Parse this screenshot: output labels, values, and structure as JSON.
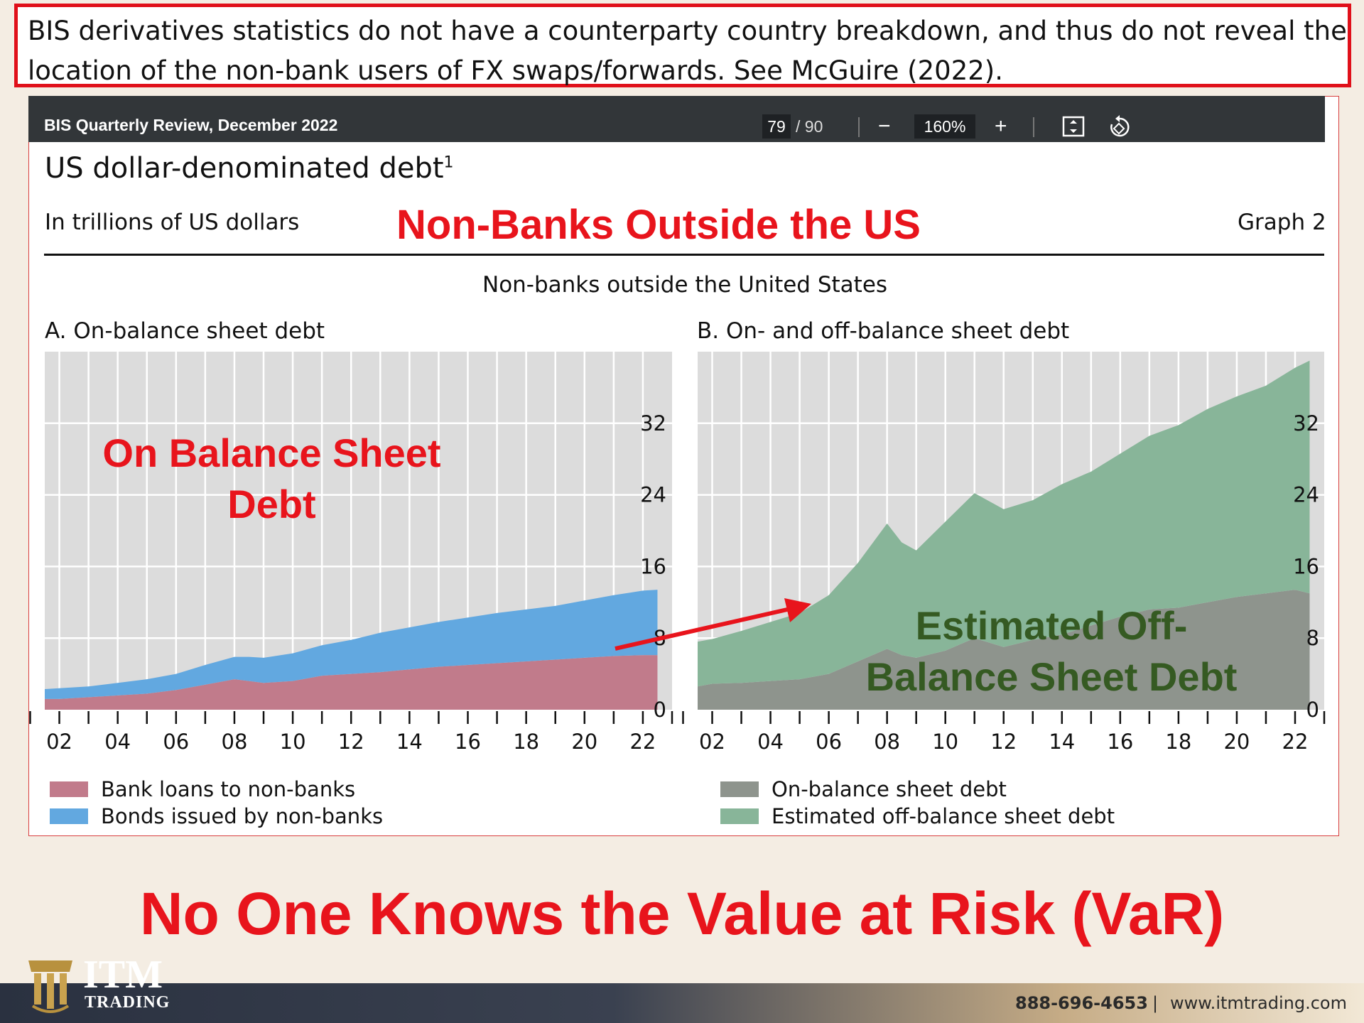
{
  "top_note": {
    "line1": "BIS derivatives statistics do not have a counterparty country breakdown, and thus do not reveal the",
    "line2": "location of the non-bank users of FX swaps/forwards. See McGuire (2022)."
  },
  "viewer": {
    "doc_title": "BIS Quarterly Review, December 2022",
    "page_current": "79",
    "page_total": "/ 90",
    "zoom": "160%"
  },
  "graph": {
    "title": "US dollar-denominated debt",
    "title_sup": "1",
    "units": "In trillions of US dollars",
    "graph_label": "Graph 2",
    "subtitle": "Non-banks outside the United States"
  },
  "annotations": {
    "headline": "Non-Banks Outside the US",
    "left_line1": "On Balance Sheet",
    "left_line2": "Debt",
    "right_line1": "Estimated Off-",
    "right_line2": "Balance Sheet Debt",
    "bottom_banner": "No One Knows the Value at Risk (VaR)"
  },
  "chart_data": [
    {
      "type": "area",
      "stacked": true,
      "title": "A. On-balance sheet debt",
      "xlabel": "",
      "ylabel": "",
      "x_ticks": [
        "02",
        "04",
        "06",
        "08",
        "10",
        "12",
        "14",
        "16",
        "18",
        "20",
        "22"
      ],
      "y_ticks": [
        "0",
        "8",
        "16",
        "24",
        "32"
      ],
      "xlim": [
        2001.5,
        2023
      ],
      "ylim": [
        0,
        40
      ],
      "grid": true,
      "legend_position": "bottom",
      "colors": [
        "#c17b8b",
        "#62a8e0"
      ],
      "x": [
        2001.5,
        2002,
        2003,
        2004,
        2005,
        2006,
        2007,
        2008,
        2008.5,
        2009,
        2010,
        2011,
        2012,
        2013,
        2014,
        2015,
        2016,
        2017,
        2018,
        2019,
        2020,
        2021,
        2022,
        2022.5
      ],
      "series": [
        {
          "name": "Bank loans to non-banks",
          "values": [
            1.2,
            1.2,
            1.4,
            1.6,
            1.8,
            2.2,
            2.8,
            3.4,
            3.2,
            3.0,
            3.2,
            3.8,
            4.0,
            4.2,
            4.5,
            4.8,
            5.0,
            5.2,
            5.4,
            5.6,
            5.8,
            6.0,
            6.1,
            6.1
          ]
        },
        {
          "name": "Bonds issued by non-banks",
          "values": [
            1.1,
            1.2,
            1.2,
            1.4,
            1.6,
            1.8,
            2.2,
            2.5,
            2.7,
            2.8,
            3.1,
            3.4,
            3.8,
            4.4,
            4.7,
            5.0,
            5.3,
            5.6,
            5.8,
            6.0,
            6.4,
            6.8,
            7.2,
            7.3
          ]
        }
      ]
    },
    {
      "type": "area",
      "stacked": true,
      "title": "B. On- and off-balance sheet debt",
      "xlabel": "",
      "ylabel": "",
      "x_ticks": [
        "02",
        "04",
        "06",
        "08",
        "10",
        "12",
        "14",
        "16",
        "18",
        "20",
        "22"
      ],
      "y_ticks": [
        "0",
        "8",
        "16",
        "24",
        "32"
      ],
      "xlim": [
        2001.5,
        2023
      ],
      "ylim": [
        0,
        40
      ],
      "grid": true,
      "legend_position": "bottom",
      "colors": [
        "#8e948d",
        "#88b599"
      ],
      "x": [
        2001.5,
        2002,
        2003,
        2004,
        2005,
        2006,
        2007,
        2008,
        2008.5,
        2009,
        2010,
        2011,
        2012,
        2013,
        2014,
        2015,
        2016,
        2017,
        2018,
        2019,
        2020,
        2021,
        2022,
        2022.5
      ],
      "series": [
        {
          "name": "On-balance sheet debt",
          "values": [
            2.6,
            2.9,
            3.0,
            3.2,
            3.4,
            4.0,
            5.4,
            6.8,
            6.1,
            5.8,
            6.6,
            8.0,
            7.0,
            7.8,
            8.4,
            9.4,
            10.4,
            11.2,
            11.4,
            12.0,
            12.6,
            13.0,
            13.4,
            13.0
          ]
        },
        {
          "name": "Estimated off-balance sheet debt",
          "values": [
            5.0,
            5.0,
            5.8,
            6.6,
            7.4,
            8.8,
            11.0,
            14.0,
            12.6,
            12.0,
            14.4,
            16.2,
            15.4,
            15.6,
            16.8,
            17.2,
            18.2,
            19.4,
            20.4,
            21.6,
            22.4,
            23.2,
            24.8,
            26.0
          ]
        }
      ]
    }
  ],
  "footer": {
    "logo_main": "ITM",
    "logo_sub": "TRADING",
    "phone": "888-696-4653",
    "divider": "|",
    "website": "www.itmtrading.com"
  }
}
